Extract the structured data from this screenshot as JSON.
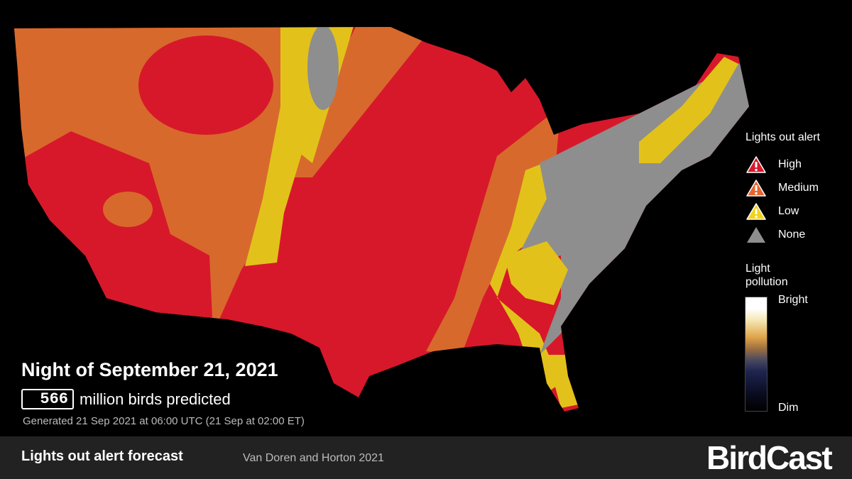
{
  "map": {
    "title": "Night of September 21, 2021",
    "count": 566,
    "count_label": "million birds predicted",
    "generated": "Generated 21 Sep 2021 at 06:00 UTC (21 Sep at 02:00 ET)"
  },
  "legend": {
    "title": "Lights out alert",
    "items": [
      {
        "label": "High",
        "color": "#d7182a"
      },
      {
        "label": "Medium",
        "color": "#e8642c"
      },
      {
        "label": "Low",
        "color": "#f2d31b"
      },
      {
        "label": "None",
        "color": "#8e8e8e"
      }
    ],
    "light_title": "Light pollution",
    "bright": "Bright",
    "dim": "Dim"
  },
  "footer": {
    "title": "Lights out alert forecast",
    "credit": "Van Doren and Horton 2021",
    "logo": "BirdCast"
  }
}
